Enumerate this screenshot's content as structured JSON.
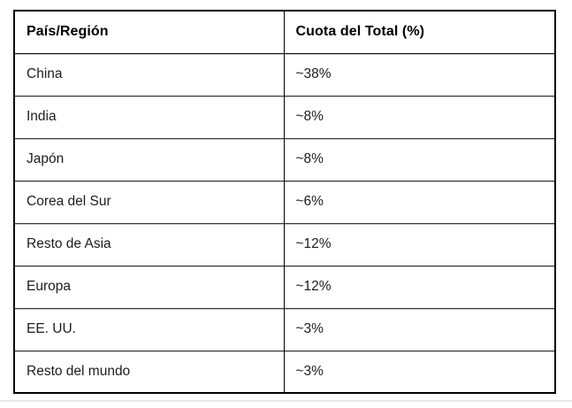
{
  "table": {
    "headers": {
      "region": "País/Región",
      "share": "Cuota del Total (%)"
    },
    "rows": [
      {
        "region": "China",
        "share": "~38%"
      },
      {
        "region": "India",
        "share": "~8%"
      },
      {
        "region": "Japón",
        "share": "~8%"
      },
      {
        "region": "Corea del Sur",
        "share": "~6%"
      },
      {
        "region": "Resto de Asia",
        "share": "~12%"
      },
      {
        "region": "Europa",
        "share": "~12%"
      },
      {
        "region": "EE. UU.",
        "share": "~3%"
      },
      {
        "region": "Resto del mundo",
        "share": "~3%"
      }
    ]
  },
  "chart_data": {
    "type": "table",
    "title": "",
    "columns": [
      "País/Región",
      "Cuota del Total (%)"
    ],
    "categories": [
      "China",
      "India",
      "Japón",
      "Corea del Sur",
      "Resto de Asia",
      "Europa",
      "EE. UU.",
      "Resto del mundo"
    ],
    "values_text": [
      "~38%",
      "~8%",
      "~8%",
      "~6%",
      "~12%",
      "~12%",
      "~3%",
      "~3%"
    ],
    "values_numeric_approx": [
      38,
      8,
      8,
      6,
      12,
      12,
      3,
      3
    ]
  },
  "colors": {
    "background": "#ffffff",
    "outer_border": "#000000",
    "inner_row_border": "#3c3c3c",
    "column_divider": "#000000",
    "header_text": "#000000",
    "body_text": "#1c1c1c",
    "bottom_divider": "#e8e8e8"
  }
}
